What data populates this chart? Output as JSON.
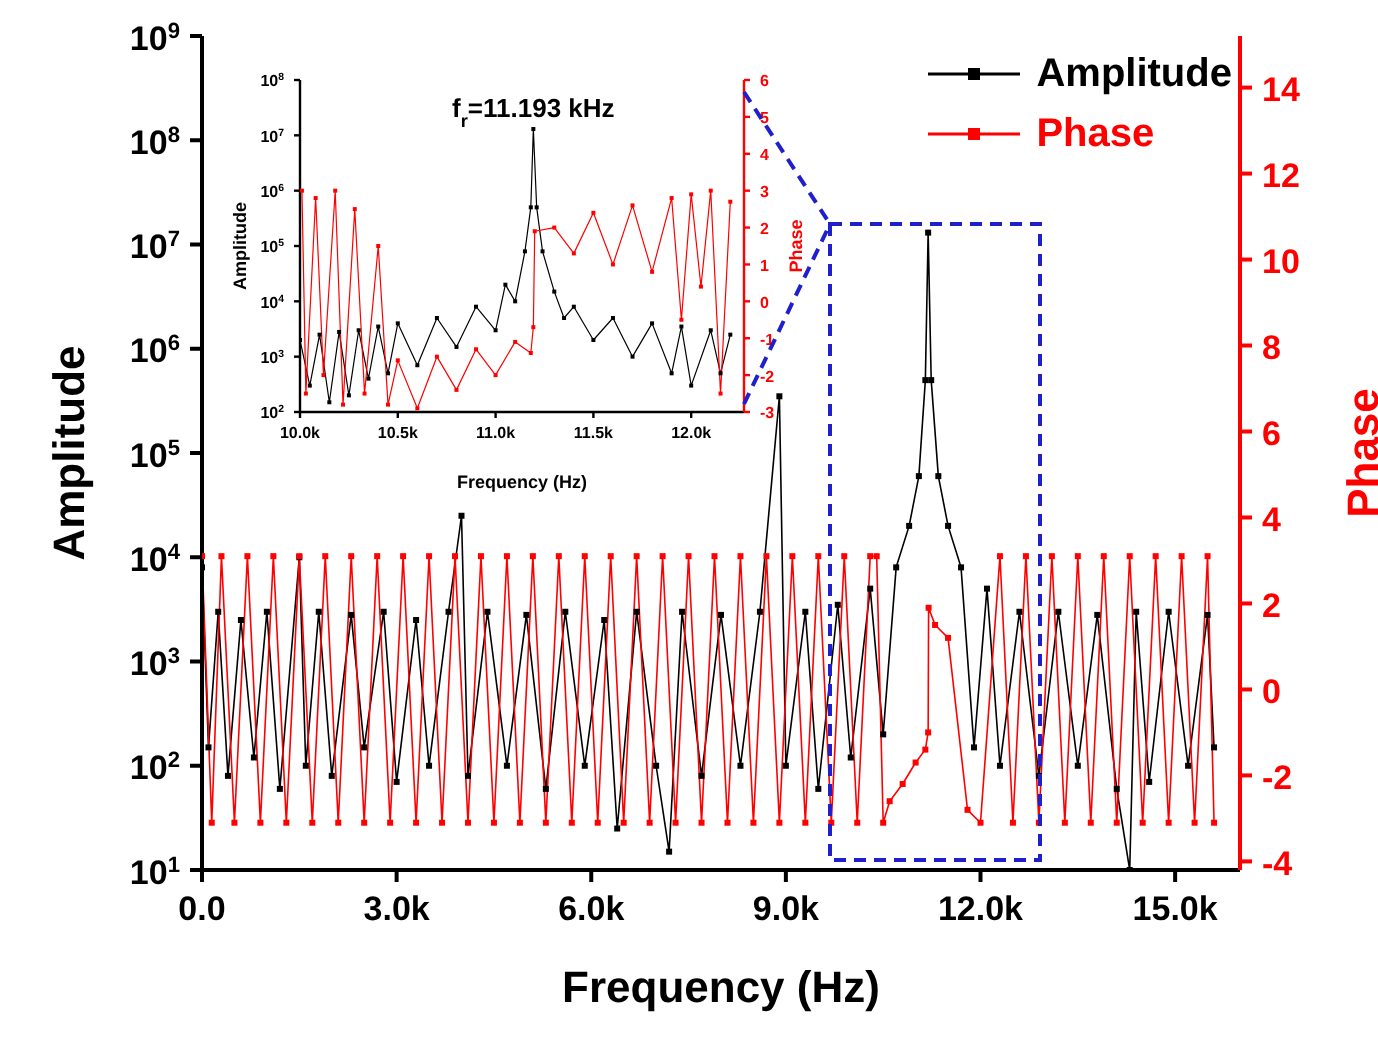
{
  "chart_data": [
    {
      "type": "line",
      "xlabel": "Frequency (Hz)",
      "ylabel": "Amplitude",
      "y2label": "Phase",
      "xlim": [
        0,
        16000
      ],
      "xticks": [
        {
          "value": 0,
          "label": "0.0"
        },
        {
          "value": 3000,
          "label": "3.0k"
        },
        {
          "value": 6000,
          "label": "6.0k"
        },
        {
          "value": 9000,
          "label": "9.0k"
        },
        {
          "value": 12000,
          "label": "12.0k"
        },
        {
          "value": 15000,
          "label": "15.0k"
        }
      ],
      "ylim": [
        10,
        1000000000
      ],
      "yticks": [
        {
          "value": 10,
          "label": "10$^{1}$"
        },
        {
          "value": 100,
          "label": "10$^{2}$"
        },
        {
          "value": 1000,
          "label": "10$^{3}$"
        },
        {
          "value": 10000,
          "label": "10$^{4}$"
        },
        {
          "value": 100000,
          "label": "10$^{5}$"
        },
        {
          "value": 1000000,
          "label": "10$^{6}$"
        },
        {
          "value": 10000000,
          "label": "10$^{7}$"
        },
        {
          "value": 100000000,
          "label": "10$^{8}$"
        },
        {
          "value": 1000000000,
          "label": "10$^{9}$"
        }
      ],
      "log": "y",
      "y2lim": [
        -4.2,
        15.2
      ],
      "y2ticks": [
        -4,
        -2,
        0,
        2,
        4,
        6,
        8,
        10,
        12,
        14
      ],
      "legend": "top right",
      "marker": "square",
      "line_style": "solid",
      "series": [
        {
          "name": "Amplitude",
          "color": "#000000",
          "x": [
            0,
            100,
            250,
            400,
            600,
            800,
            1000,
            1200,
            1500,
            1600,
            1800,
            2000,
            2300,
            2500,
            2800,
            3000,
            3300,
            3500,
            3800,
            4000,
            4100,
            4400,
            4700,
            5000,
            5300,
            5600,
            5900,
            6200,
            6400,
            6700,
            7000,
            7200,
            7400,
            7700,
            8000,
            8300,
            8600,
            8900,
            9000,
            9300,
            9500,
            9800,
            10000,
            10300,
            10500,
            10700,
            10900,
            11050,
            11150,
            11193,
            11240,
            11350,
            11500,
            11700,
            11900,
            12100,
            12300,
            12600,
            12900,
            13200,
            13500,
            13800,
            14100,
            14300,
            14400,
            14600,
            14900,
            15200,
            15500,
            15600
          ],
          "values": [
            8000,
            150,
            3000,
            80,
            2500,
            120,
            3000,
            60,
            10000,
            100,
            3000,
            80,
            2800,
            150,
            3000,
            70,
            2500,
            100,
            3000,
            25000,
            80,
            3000,
            100,
            2800,
            60,
            3000,
            100,
            2500,
            25,
            3000,
            100,
            15,
            3000,
            80,
            2800,
            100,
            3000,
            350000,
            100,
            3000,
            60,
            3500,
            120,
            5000,
            200,
            8000,
            20000,
            60000,
            500000,
            13000000,
            500000,
            60000,
            20000,
            8000,
            150,
            5000,
            100,
            3000,
            80,
            3000,
            100,
            2800,
            60,
            10,
            3000,
            70,
            3000,
            100,
            2800,
            150
          ]
        },
        {
          "name": "Phase",
          "color": "#ff0000",
          "axis": "y2",
          "x": [
            0,
            150,
            300,
            500,
            700,
            900,
            1100,
            1300,
            1500,
            1700,
            1900,
            2100,
            2300,
            2500,
            2700,
            2900,
            3100,
            3300,
            3500,
            3700,
            3900,
            4100,
            4300,
            4500,
            4700,
            4900,
            5100,
            5300,
            5500,
            5700,
            5900,
            6100,
            6300,
            6500,
            6700,
            6900,
            7100,
            7300,
            7500,
            7700,
            7900,
            8100,
            8300,
            8500,
            8700,
            8900,
            9100,
            9300,
            9500,
            9700,
            9900,
            10100,
            10300,
            10400,
            10500,
            10600,
            10800,
            11000,
            11150,
            11193,
            11200,
            11300,
            11500,
            11800,
            12000,
            12300,
            12500,
            12700,
            12900,
            13100,
            13300,
            13500,
            13700,
            13900,
            14100,
            14300,
            14500,
            14700,
            14900,
            15100,
            15300,
            15500,
            15600
          ],
          "values": [
            3.1,
            -3.1,
            3.1,
            -3.1,
            3.1,
            -3.1,
            3.1,
            -3.1,
            3.1,
            -3.1,
            3.1,
            -3.1,
            3.1,
            -3.1,
            3.1,
            -3.1,
            3.1,
            -3.1,
            3.1,
            -3.1,
            3.1,
            -3.1,
            3.1,
            -3.1,
            3.1,
            -3.1,
            3.1,
            -3.1,
            3.1,
            -3.1,
            3.1,
            -3.1,
            3.1,
            -3.1,
            3.1,
            -3.1,
            3.1,
            -3.1,
            3.1,
            -3.1,
            3.1,
            -3.1,
            3.1,
            -3.1,
            3.1,
            -3.1,
            3.1,
            -3.1,
            3.1,
            -3.1,
            3.1,
            -3.1,
            3.1,
            3.1,
            -3.1,
            -2.6,
            -2.2,
            -1.7,
            -1.4,
            -1.0,
            1.9,
            1.5,
            1.2,
            -2.8,
            -3.1,
            3.1,
            -3.1,
            3.1,
            -3.1,
            3.1,
            -3.1,
            3.1,
            -3.1,
            3.1,
            -3.1,
            3.1,
            -3.1,
            3.1,
            -3.1,
            3.1,
            -3.1,
            3.1,
            -3.1
          ]
        }
      ]
    },
    {
      "type": "line",
      "xlabel": "Frequency (Hz)",
      "ylabel": "Amplitude",
      "y2label": "Phase",
      "xlim": [
        10000,
        12270
      ],
      "xticks": [
        {
          "value": 10000,
          "label": "10.0k"
        },
        {
          "value": 10500,
          "label": "10.5k"
        },
        {
          "value": 11000,
          "label": "11.0k"
        },
        {
          "value": 11500,
          "label": "11.5k"
        },
        {
          "value": 12000,
          "label": "12.0k"
        }
      ],
      "ylim": [
        100,
        100000000
      ],
      "yticks": [
        {
          "value": 100,
          "label": "10$^{2}$"
        },
        {
          "value": 1000,
          "label": "10$^{3}$"
        },
        {
          "value": 10000,
          "label": "10$^{4}$"
        },
        {
          "value": 100000,
          "label": "10$^{5}$"
        },
        {
          "value": 1000000,
          "label": "10$^{6}$"
        },
        {
          "value": 10000000,
          "label": "10$^{7}$"
        },
        {
          "value": 100000000,
          "label": "10$^{8}$"
        }
      ],
      "log": "y",
      "y2lim": [
        -3,
        6
      ],
      "y2ticks": [
        -3,
        -2,
        -1,
        0,
        1,
        2,
        3,
        4,
        5,
        6
      ],
      "marker": "square",
      "line_style": "solid",
      "annotations": [
        {
          "text": "f$_{r}$=11.193 kHz",
          "x": 11193,
          "y": 13000000
        }
      ],
      "series": [
        {
          "color": "#000000",
          "x": [
            10000,
            10050,
            10100,
            10150,
            10200,
            10250,
            10300,
            10350,
            10400,
            10450,
            10500,
            10600,
            10700,
            10800,
            10900,
            11000,
            11050,
            11100,
            11150,
            11180,
            11193,
            11210,
            11240,
            11300,
            11350,
            11400,
            11500,
            11600,
            11700,
            11800,
            11900,
            11950,
            12000,
            12100,
            12150,
            12200
          ],
          "values": [
            2000,
            300,
            2500,
            150,
            2800,
            200,
            3000,
            400,
            3500,
            500,
            4000,
            700,
            5000,
            1500,
            8000,
            3000,
            20000,
            10000,
            80000,
            500000,
            13000000,
            500000,
            80000,
            15000,
            5000,
            8000,
            2000,
            5000,
            1000,
            4000,
            500,
            3500,
            300,
            3000,
            500,
            2500
          ]
        },
        {
          "color": "#ff0000",
          "axis": "y2",
          "x": [
            10010,
            10030,
            10080,
            10120,
            10180,
            10220,
            10280,
            10330,
            10400,
            10450,
            10500,
            10600,
            10700,
            10800,
            10900,
            11000,
            11100,
            11180,
            11193,
            11200,
            11300,
            11400,
            11500,
            11600,
            11700,
            11800,
            11900,
            11950,
            12000,
            12050,
            12100,
            12150,
            12200
          ],
          "values": [
            3,
            -2.5,
            2.8,
            -2,
            3,
            -2.8,
            2.5,
            -2.5,
            1.5,
            -2.8,
            -1.6,
            -2.9,
            -1.5,
            -2.4,
            -1.3,
            -2,
            -1.1,
            -1.4,
            -0.7,
            1.9,
            2.0,
            1.3,
            2.4,
            1.0,
            2.6,
            0.8,
            2.8,
            -0.5,
            2.9,
            0.4,
            3,
            -2.5,
            2.7
          ]
        }
      ]
    }
  ]
}
